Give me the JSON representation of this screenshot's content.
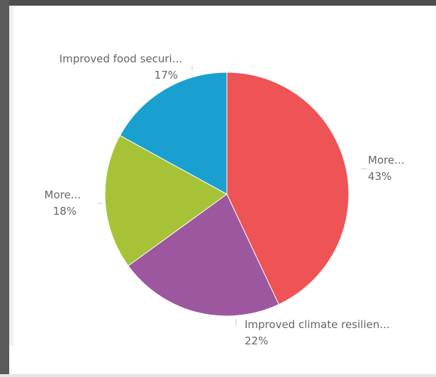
{
  "chart_data": {
    "type": "pie",
    "slices": [
      {
        "label": "More...",
        "percent_label": "43%",
        "value": 43,
        "color": "#ee5355"
      },
      {
        "label": "Improved climate resilien...",
        "percent_label": "22%",
        "value": 22,
        "color": "#9c579e"
      },
      {
        "label": "More...",
        "percent_label": "18%",
        "value": 18,
        "color": "#a6c337"
      },
      {
        "label": "Improved food securi...",
        "percent_label": "17%",
        "value": 17,
        "color": "#1aa0d0"
      }
    ],
    "start_angle_deg": 0,
    "direction": "clockwise",
    "legend": "none"
  }
}
